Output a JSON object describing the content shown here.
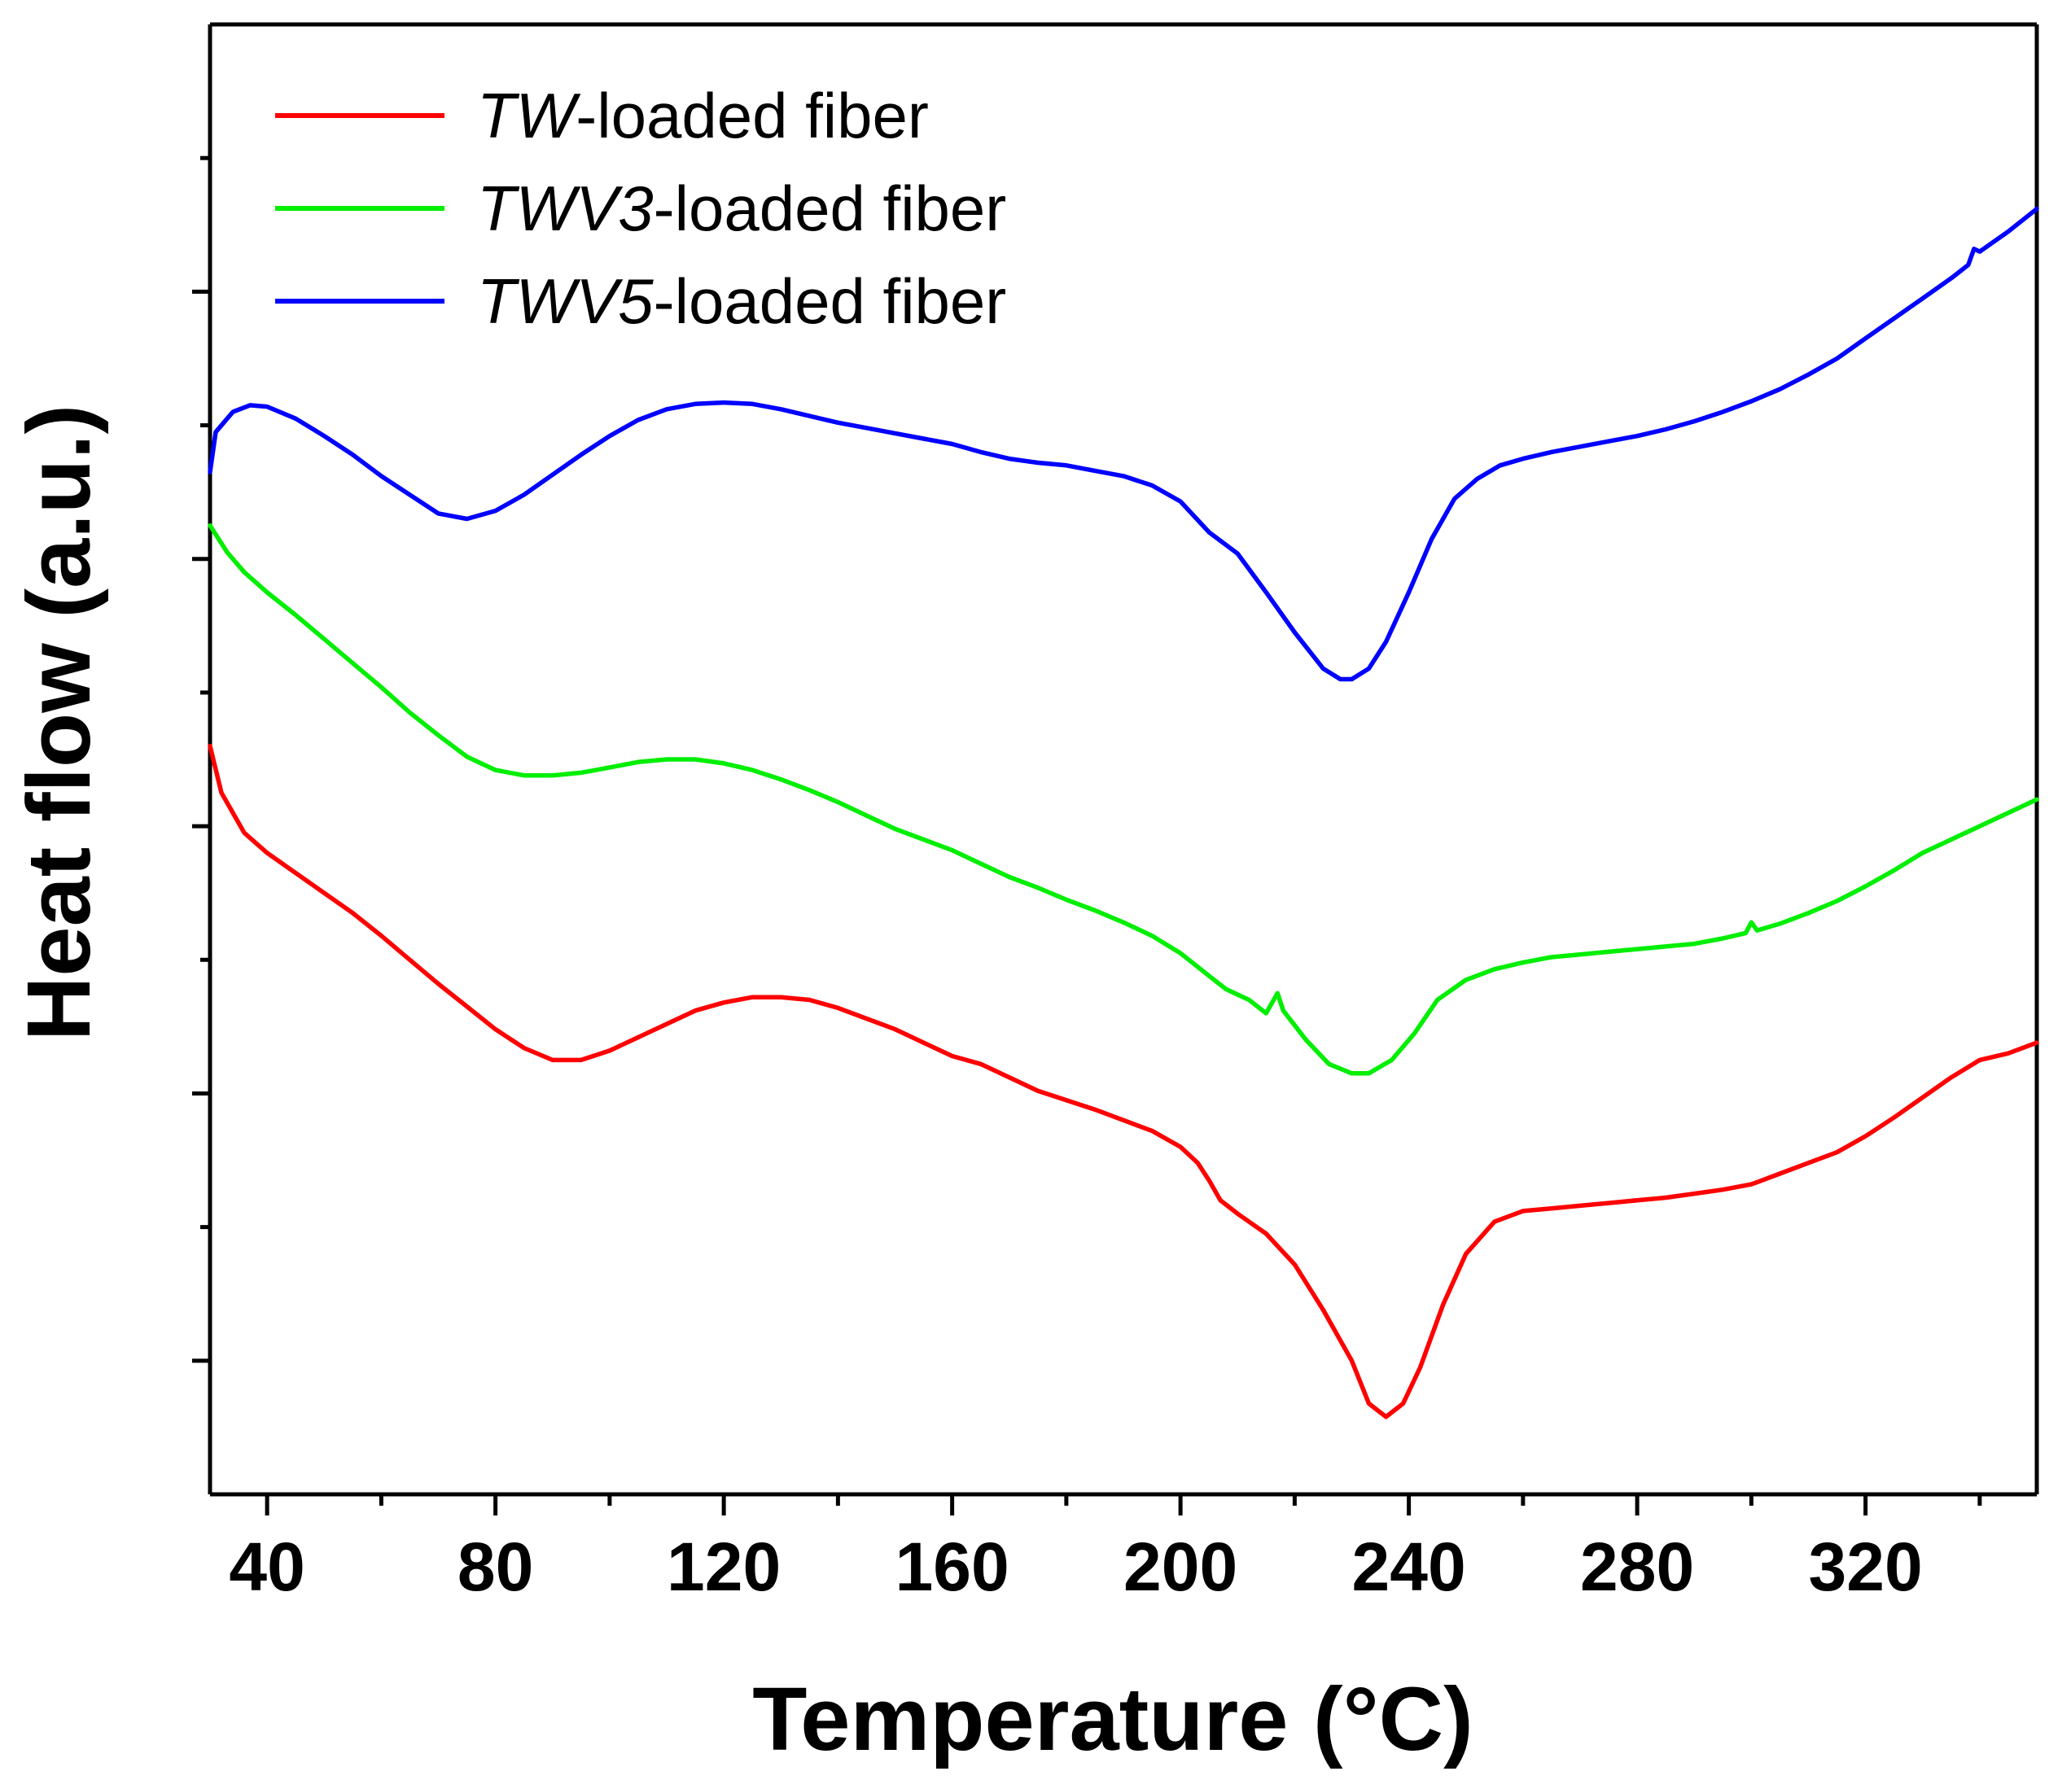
{
  "chart_data": {
    "type": "line",
    "title": "",
    "xlabel": "Temperature (°C)",
    "ylabel": "Heat flow (a.u.)",
    "xlim": [
      30,
      350
    ],
    "ylim": [
      0,
      11
    ],
    "x_major_ticks": [
      40,
      80,
      120,
      160,
      200,
      240,
      280,
      320
    ],
    "x_tick_labels": [
      "40",
      "80",
      "120",
      "160",
      "200",
      "240",
      "280",
      "320"
    ],
    "x_minor_ticks": [
      60,
      100,
      140,
      180,
      220,
      260,
      300,
      340
    ],
    "y_major_ticks": [
      1,
      3,
      5,
      7,
      9
    ],
    "y_minor_ticks": [
      2,
      4,
      6,
      8,
      10
    ],
    "y_tick_labels_shown": false,
    "grid": false,
    "legend_position": "top-left",
    "series": [
      {
        "name": "TW-loaded fiber",
        "legend_italic": "TW",
        "legend_rest": "-loaded fiber",
        "color": "#ff0000",
        "points": [
          [
            30,
            5.6
          ],
          [
            32,
            5.25
          ],
          [
            36,
            4.95
          ],
          [
            40,
            4.8
          ],
          [
            45,
            4.65
          ],
          [
            50,
            4.5
          ],
          [
            55,
            4.35
          ],
          [
            60,
            4.18
          ],
          [
            65,
            4.0
          ],
          [
            70,
            3.82
          ],
          [
            75,
            3.65
          ],
          [
            80,
            3.48
          ],
          [
            85,
            3.34
          ],
          [
            90,
            3.25
          ],
          [
            95,
            3.25
          ],
          [
            100,
            3.32
          ],
          [
            105,
            3.42
          ],
          [
            110,
            3.52
          ],
          [
            115,
            3.62
          ],
          [
            120,
            3.68
          ],
          [
            125,
            3.72
          ],
          [
            130,
            3.72
          ],
          [
            135,
            3.7
          ],
          [
            140,
            3.64
          ],
          [
            145,
            3.56
          ],
          [
            150,
            3.48
          ],
          [
            155,
            3.38
          ],
          [
            160,
            3.28
          ],
          [
            165,
            3.22
          ],
          [
            170,
            3.12
          ],
          [
            175,
            3.02
          ],
          [
            180,
            2.95
          ],
          [
            185,
            2.88
          ],
          [
            190,
            2.8
          ],
          [
            195,
            2.72
          ],
          [
            200,
            2.6
          ],
          [
            203,
            2.48
          ],
          [
            205,
            2.35
          ],
          [
            207,
            2.2
          ],
          [
            210,
            2.1
          ],
          [
            215,
            1.95
          ],
          [
            220,
            1.72
          ],
          [
            225,
            1.38
          ],
          [
            230,
            1.0
          ],
          [
            233,
            0.68
          ],
          [
            236,
            0.58
          ],
          [
            239,
            0.68
          ],
          [
            242,
            0.95
          ],
          [
            246,
            1.42
          ],
          [
            250,
            1.8
          ],
          [
            255,
            2.04
          ],
          [
            260,
            2.12
          ],
          [
            265,
            2.14
          ],
          [
            270,
            2.16
          ],
          [
            275,
            2.18
          ],
          [
            280,
            2.2
          ],
          [
            285,
            2.22
          ],
          [
            290,
            2.25
          ],
          [
            295,
            2.28
          ],
          [
            300,
            2.32
          ],
          [
            305,
            2.4
          ],
          [
            310,
            2.48
          ],
          [
            315,
            2.56
          ],
          [
            320,
            2.68
          ],
          [
            325,
            2.82
          ],
          [
            330,
            2.97
          ],
          [
            335,
            3.12
          ],
          [
            340,
            3.25
          ],
          [
            345,
            3.3
          ],
          [
            350,
            3.38
          ]
        ]
      },
      {
        "name": "TWV3-loaded fiber",
        "legend_italic": "TWV3",
        "legend_rest": "-loaded fiber",
        "color": "#00ee00",
        "points": [
          [
            30,
            7.25
          ],
          [
            33,
            7.05
          ],
          [
            36,
            6.9
          ],
          [
            40,
            6.75
          ],
          [
            45,
            6.58
          ],
          [
            50,
            6.4
          ],
          [
            55,
            6.22
          ],
          [
            60,
            6.04
          ],
          [
            65,
            5.85
          ],
          [
            70,
            5.68
          ],
          [
            75,
            5.52
          ],
          [
            80,
            5.42
          ],
          [
            85,
            5.38
          ],
          [
            90,
            5.38
          ],
          [
            95,
            5.4
          ],
          [
            100,
            5.44
          ],
          [
            105,
            5.48
          ],
          [
            110,
            5.5
          ],
          [
            115,
            5.5
          ],
          [
            120,
            5.47
          ],
          [
            125,
            5.42
          ],
          [
            130,
            5.35
          ],
          [
            135,
            5.27
          ],
          [
            140,
            5.18
          ],
          [
            145,
            5.08
          ],
          [
            150,
            4.98
          ],
          [
            155,
            4.9
          ],
          [
            160,
            4.82
          ],
          [
            165,
            4.72
          ],
          [
            170,
            4.62
          ],
          [
            175,
            4.54
          ],
          [
            180,
            4.45
          ],
          [
            185,
            4.37
          ],
          [
            190,
            4.28
          ],
          [
            195,
            4.18
          ],
          [
            200,
            4.05
          ],
          [
            205,
            3.88
          ],
          [
            208,
            3.78
          ],
          [
            212,
            3.7
          ],
          [
            215,
            3.6
          ],
          [
            217,
            3.75
          ],
          [
            218,
            3.62
          ],
          [
            222,
            3.4
          ],
          [
            226,
            3.22
          ],
          [
            230,
            3.15
          ],
          [
            233,
            3.15
          ],
          [
            237,
            3.25
          ],
          [
            241,
            3.45
          ],
          [
            245,
            3.7
          ],
          [
            250,
            3.85
          ],
          [
            255,
            3.93
          ],
          [
            260,
            3.98
          ],
          [
            265,
            4.02
          ],
          [
            270,
            4.04
          ],
          [
            275,
            4.06
          ],
          [
            280,
            4.08
          ],
          [
            285,
            4.1
          ],
          [
            290,
            4.12
          ],
          [
            295,
            4.16
          ],
          [
            299,
            4.2
          ],
          [
            300,
            4.28
          ],
          [
            301,
            4.22
          ],
          [
            305,
            4.27
          ],
          [
            310,
            4.35
          ],
          [
            315,
            4.44
          ],
          [
            320,
            4.55
          ],
          [
            325,
            4.67
          ],
          [
            330,
            4.8
          ],
          [
            335,
            4.9
          ],
          [
            340,
            5.0
          ],
          [
            345,
            5.1
          ],
          [
            350,
            5.2
          ]
        ]
      },
      {
        "name": "TWV5-loaded fiber",
        "legend_italic": "TWV5",
        "legend_rest": "-loaded fiber",
        "color": "#0000ff",
        "points": [
          [
            30,
            7.65
          ],
          [
            31,
            7.95
          ],
          [
            34,
            8.1
          ],
          [
            37,
            8.15
          ],
          [
            40,
            8.14
          ],
          [
            45,
            8.05
          ],
          [
            50,
            7.92
          ],
          [
            55,
            7.78
          ],
          [
            60,
            7.62
          ],
          [
            65,
            7.48
          ],
          [
            70,
            7.34
          ],
          [
            75,
            7.3
          ],
          [
            80,
            7.36
          ],
          [
            85,
            7.48
          ],
          [
            90,
            7.63
          ],
          [
            95,
            7.78
          ],
          [
            100,
            7.92
          ],
          [
            105,
            8.04
          ],
          [
            110,
            8.12
          ],
          [
            115,
            8.16
          ],
          [
            120,
            8.17
          ],
          [
            125,
            8.16
          ],
          [
            130,
            8.12
          ],
          [
            135,
            8.07
          ],
          [
            140,
            8.02
          ],
          [
            145,
            7.98
          ],
          [
            150,
            7.94
          ],
          [
            155,
            7.9
          ],
          [
            160,
            7.86
          ],
          [
            165,
            7.8
          ],
          [
            170,
            7.75
          ],
          [
            175,
            7.72
          ],
          [
            180,
            7.7
          ],
          [
            185,
            7.66
          ],
          [
            190,
            7.62
          ],
          [
            195,
            7.55
          ],
          [
            200,
            7.43
          ],
          [
            205,
            7.2
          ],
          [
            210,
            7.04
          ],
          [
            215,
            6.75
          ],
          [
            220,
            6.45
          ],
          [
            225,
            6.18
          ],
          [
            228,
            6.1
          ],
          [
            230,
            6.1
          ],
          [
            233,
            6.18
          ],
          [
            236,
            6.38
          ],
          [
            240,
            6.75
          ],
          [
            244,
            7.15
          ],
          [
            248,
            7.45
          ],
          [
            252,
            7.6
          ],
          [
            256,
            7.7
          ],
          [
            260,
            7.75
          ],
          [
            265,
            7.8
          ],
          [
            270,
            7.84
          ],
          [
            275,
            7.88
          ],
          [
            280,
            7.92
          ],
          [
            285,
            7.97
          ],
          [
            290,
            8.03
          ],
          [
            295,
            8.1
          ],
          [
            300,
            8.18
          ],
          [
            305,
            8.27
          ],
          [
            310,
            8.38
          ],
          [
            315,
            8.5
          ],
          [
            320,
            8.65
          ],
          [
            325,
            8.8
          ],
          [
            330,
            8.95
          ],
          [
            335,
            9.1
          ],
          [
            338,
            9.2
          ],
          [
            339,
            9.32
          ],
          [
            340,
            9.3
          ],
          [
            345,
            9.45
          ],
          [
            350,
            9.62
          ]
        ]
      }
    ]
  }
}
